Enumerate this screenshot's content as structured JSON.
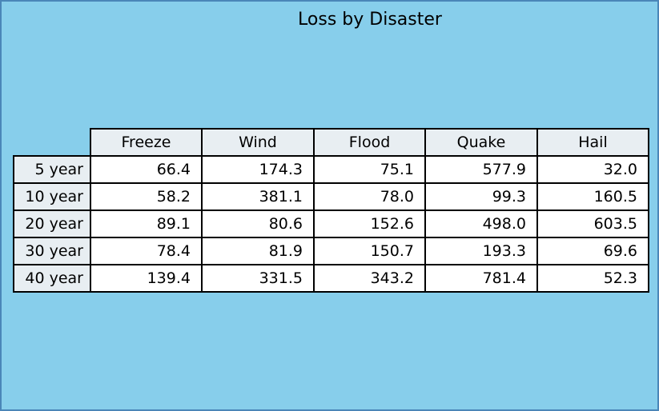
{
  "chart_data": {
    "type": "table",
    "title": "Loss by Disaster",
    "columns": [
      "Freeze",
      "Wind",
      "Flood",
      "Quake",
      "Hail"
    ],
    "rows": [
      "5 year",
      "10 year",
      "20 year",
      "30 year",
      "40 year"
    ],
    "values": [
      [
        "66.4",
        "174.3",
        "75.1",
        "577.9",
        "32.0"
      ],
      [
        "58.2",
        "381.1",
        "78.0",
        "99.3",
        "160.5"
      ],
      [
        "89.1",
        "80.6",
        "152.6",
        "498.0",
        "603.5"
      ],
      [
        "78.4",
        "81.9",
        "150.7",
        "193.3",
        "69.6"
      ],
      [
        "139.4",
        "331.5",
        "343.2",
        "781.4",
        "52.3"
      ]
    ],
    "colors": {
      "background": "#87ceeb",
      "border": "#4a86b8",
      "header_fill": "#e8eef2",
      "cell_fill": "#ffffff"
    }
  }
}
